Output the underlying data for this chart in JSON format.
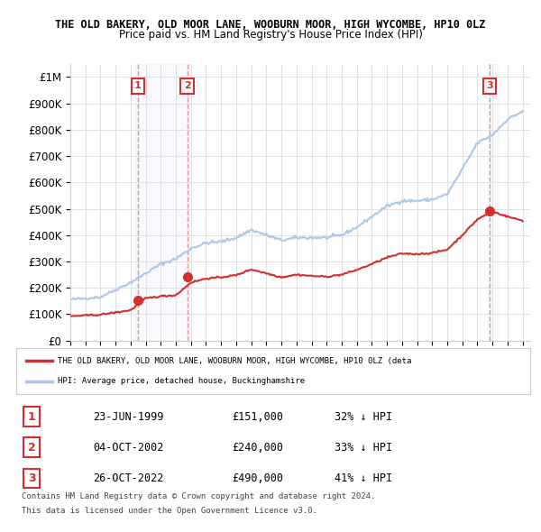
{
  "title": "THE OLD BAKERY, OLD MOOR LANE, WOOBURN MOOR, HIGH WYCOMBE, HP10 0LZ",
  "subtitle": "Price paid vs. HM Land Registry's House Price Index (HPI)",
  "hpi_color": "#aec6e8",
  "price_color": "#d32f2f",
  "vline_color_red": "#e57373",
  "vline_color_blue": "#aec6e8",
  "sale_marker_color": "#d32f2f",
  "ylim": [
    0,
    1050000
  ],
  "xlim_start": 1995.0,
  "xlim_end": 2025.5,
  "sales": [
    {
      "label": "1",
      "date": "23-JUN-1999",
      "year": 1999.47,
      "price": 151000,
      "hpi_pct": "32% ↓ HPI"
    },
    {
      "label": "2",
      "date": "04-OCT-2002",
      "year": 2002.75,
      "price": 240000,
      "hpi_pct": "33% ↓ HPI"
    },
    {
      "label": "3",
      "date": "26-OCT-2022",
      "year": 2022.81,
      "price": 490000,
      "hpi_pct": "41% ↓ HPI"
    }
  ],
  "legend_text_red": "THE OLD BAKERY, OLD MOOR LANE, WOOBURN MOOR, HIGH WYCOMBE, HP10 0LZ (deta",
  "legend_text_blue": "HPI: Average price, detached house, Buckinghamshire",
  "footer1": "Contains HM Land Registry data © Crown copyright and database right 2024.",
  "footer2": "This data is licensed under the Open Government Licence v3.0.",
  "background_color": "#ffffff",
  "plot_bg_color": "#ffffff",
  "grid_color": "#e0e0e0",
  "ytick_labels": [
    "£0",
    "£100K",
    "£200K",
    "£300K",
    "£400K",
    "£500K",
    "£600K",
    "£700K",
    "£800K",
    "£900K",
    "£1M"
  ],
  "ytick_values": [
    0,
    100000,
    200000,
    300000,
    400000,
    500000,
    600000,
    700000,
    800000,
    900000,
    1000000
  ]
}
